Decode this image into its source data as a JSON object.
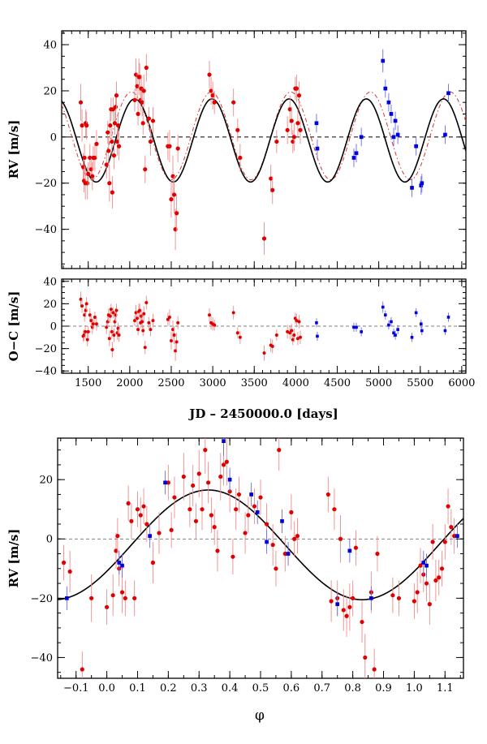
{
  "chart_data": [
    {
      "id": "rv-time",
      "type": "scatter",
      "xlabel": "",
      "ylabel": "RV [m/s]",
      "xlim": [
        1180,
        6050
      ],
      "ylim": [
        -57,
        46
      ],
      "yticks": [
        -40,
        -20,
        0,
        20,
        40
      ],
      "xticks": [
        1500,
        2000,
        2500,
        3000,
        3500,
        4000,
        4500,
        5000,
        5500,
        6000
      ],
      "show_xtick_labels": false,
      "model": {
        "type": "sine",
        "amplitude": 18.0,
        "offset": -1.5,
        "period": 930,
        "t0_peak": 2060
      },
      "model_alt": {
        "type": "sine",
        "amplitude": 19.0,
        "offset": 0.5,
        "period": 960,
        "t0_peak": 2020
      },
      "series": [
        {
          "name": "red instrument",
          "color": "#e00000",
          "marker": "circle",
          "x": [
            1410,
            1425,
            1440,
            1450,
            1455,
            1465,
            1470,
            1480,
            1490,
            1500,
            1520,
            1535,
            1550,
            1560,
            1580,
            1600,
            1720,
            1735,
            1745,
            1755,
            1765,
            1775,
            1785,
            1790,
            1800,
            1810,
            1820,
            1830,
            1840,
            1850,
            1860,
            1870,
            2060,
            2075,
            2090,
            2100,
            2110,
            2120,
            2130,
            2140,
            2150,
            2160,
            2170,
            2185,
            2200,
            2230,
            2250,
            2280,
            2460,
            2480,
            2500,
            2520,
            2535,
            2550,
            2565,
            2580,
            2960,
            2980,
            3000,
            3020,
            3250,
            3300,
            3330,
            3620,
            3700,
            3720,
            3770,
            3900,
            3930,
            3950,
            3965,
            3980,
            3995,
            4010,
            4025,
            4040,
            4055
          ],
          "y": [
            15,
            5,
            -13,
            -19,
            -9,
            -20,
            6,
            5,
            -20,
            -16,
            -9,
            -14,
            -17,
            -9,
            -9,
            -3,
            -12,
            2,
            -6,
            -20,
            5,
            12,
            -2,
            -24,
            12,
            -8,
            6,
            13,
            18,
            -2,
            5,
            -4,
            16,
            27,
            22,
            10,
            26,
            26,
            16,
            21,
            15,
            6,
            20,
            -14,
            30,
            8,
            -2,
            7,
            -4,
            -4,
            -27,
            -17,
            -25,
            -40,
            -33,
            -5,
            27,
            20,
            18,
            15,
            15,
            3,
            -9,
            -44,
            -18,
            -23,
            -2,
            3,
            12,
            7,
            -2,
            0,
            21,
            21,
            6,
            18,
            3
          ],
          "err": [
            8,
            7,
            6,
            5,
            6,
            7,
            6,
            6,
            7,
            5,
            6,
            5,
            6,
            5,
            6,
            6,
            6,
            5,
            6,
            8,
            6,
            5,
            6,
            7,
            5,
            6,
            5,
            6,
            6,
            6,
            5,
            6,
            5,
            7,
            6,
            5,
            8,
            6,
            5,
            6,
            6,
            5,
            7,
            6,
            6,
            5,
            6,
            6,
            6,
            7,
            8,
            9,
            8,
            9,
            8,
            6,
            6,
            6,
            6,
            5,
            6,
            5,
            6,
            7,
            6,
            6,
            5,
            6,
            6,
            6,
            5,
            6,
            5,
            6,
            6,
            6,
            6
          ]
        },
        {
          "name": "blue instrument",
          "color": "#0000dd",
          "marker": "square",
          "x": [
            4250,
            4260,
            4700,
            4730,
            4790,
            5050,
            5080,
            5120,
            5150,
            5180,
            5200,
            5230,
            5400,
            5450,
            5510,
            5520,
            5800,
            5840
          ],
          "y": [
            6,
            -5,
            -9,
            -7,
            0,
            33,
            21,
            15,
            10,
            0,
            7,
            1,
            -22,
            -4,
            -21,
            -20,
            1,
            19
          ],
          "err": [
            4,
            4,
            4,
            4,
            4,
            5,
            4,
            4,
            4,
            4,
            4,
            4,
            4,
            4,
            4,
            4,
            4,
            4
          ]
        }
      ]
    },
    {
      "id": "residuals",
      "type": "scatter",
      "xlabel": "JD – 2450000.0 [days]",
      "ylabel": "O−C [m/s]",
      "xlim": [
        1180,
        6050
      ],
      "ylim": [
        -42,
        42
      ],
      "yticks": [
        -40,
        -20,
        0,
        20,
        40
      ],
      "xticks": [
        1500,
        2000,
        2500,
        3000,
        3500,
        4000,
        4500,
        5000,
        5500,
        6000
      ],
      "show_xtick_labels": true,
      "series": [
        {
          "name": "red residuals",
          "color": "#e00000",
          "marker": "circle",
          "x": [
            1410,
            1425,
            1440,
            1450,
            1455,
            1465,
            1470,
            1480,
            1490,
            1500,
            1520,
            1535,
            1550,
            1560,
            1580,
            1600,
            1720,
            1735,
            1745,
            1755,
            1765,
            1775,
            1785,
            1790,
            1800,
            1810,
            1820,
            1830,
            1840,
            1850,
            1860,
            1870,
            2060,
            2075,
            2090,
            2100,
            2110,
            2120,
            2130,
            2140,
            2150,
            2160,
            2170,
            2185,
            2200,
            2230,
            2250,
            2280,
            2460,
            2480,
            2500,
            2520,
            2535,
            2550,
            2565,
            2580,
            2960,
            2980,
            3000,
            3020,
            3250,
            3300,
            3330,
            3620,
            3700,
            3720,
            3770,
            3900,
            3930,
            3950,
            3965,
            3980,
            3995,
            4010,
            4025,
            4040,
            4055
          ],
          "y": [
            24,
            18,
            -9,
            -8,
            10,
            -5,
            14,
            20,
            -12,
            -5,
            10,
            5,
            -1,
            2,
            8,
            2,
            -1,
            4,
            10,
            -11,
            9,
            15,
            -5,
            -21,
            12,
            -8,
            4,
            10,
            14,
            -6,
            -2,
            -8,
            5,
            12,
            7,
            -3,
            13,
            14,
            3,
            9,
            4,
            -4,
            11,
            -19,
            21,
            3,
            -3,
            5,
            6,
            8,
            -13,
            -3,
            -8,
            -22,
            -14,
            3,
            10,
            3,
            2,
            1,
            12,
            -6,
            -10,
            -24,
            -17,
            -18,
            -8,
            -5,
            -6,
            -4,
            -12,
            -8,
            7,
            5,
            -11,
            4,
            -10
          ],
          "err": [
            7,
            6,
            5,
            5,
            6,
            6,
            6,
            6,
            6,
            5,
            6,
            5,
            6,
            5,
            5,
            6,
            6,
            5,
            6,
            7,
            6,
            5,
            6,
            7,
            5,
            6,
            5,
            6,
            6,
            6,
            5,
            6,
            5,
            7,
            6,
            5,
            7,
            6,
            5,
            6,
            6,
            5,
            7,
            6,
            6,
            5,
            6,
            6,
            6,
            7,
            8,
            8,
            8,
            9,
            8,
            6,
            6,
            6,
            6,
            5,
            6,
            5,
            6,
            7,
            6,
            6,
            5,
            6,
            6,
            6,
            5,
            6,
            5,
            6,
            6,
            6,
            6
          ]
        },
        {
          "name": "blue residuals",
          "color": "#0000dd",
          "marker": "square",
          "x": [
            4250,
            4260,
            4700,
            4730,
            4790,
            5050,
            5080,
            5120,
            5150,
            5180,
            5200,
            5230,
            5400,
            5450,
            5510,
            5520,
            5800,
            5840
          ],
          "y": [
            3,
            -9,
            -1,
            -1,
            -5,
            17,
            10,
            1,
            4,
            -6,
            -8,
            -3,
            -10,
            12,
            2,
            -4,
            -4,
            8
          ],
          "err": [
            4,
            4,
            4,
            4,
            4,
            5,
            4,
            4,
            4,
            4,
            4,
            4,
            4,
            4,
            4,
            4,
            4,
            4
          ]
        }
      ]
    },
    {
      "id": "phase-folded",
      "type": "scatter",
      "xlabel": "φ",
      "ylabel": "RV [m/s]",
      "xlim": [
        -0.16,
        1.16
      ],
      "ylim": [
        -47,
        34
      ],
      "yticks": [
        -40,
        -20,
        0,
        20
      ],
      "xticks": [
        -0.1,
        0.0,
        0.1,
        0.2,
        0.3,
        0.4,
        0.5,
        0.6,
        0.7,
        0.8,
        0.9,
        1.0,
        1.1
      ],
      "xtick_labels": [
        "−0.1",
        "0.0",
        "0.1",
        "0.2",
        "0.3",
        "0.4",
        "0.5",
        "0.6",
        "0.7",
        "0.8",
        "0.9",
        "1.0",
        "1.1"
      ],
      "model": {
        "type": "sine",
        "amplitude": 18.5,
        "offset": -2.0,
        "period": 1.0,
        "t0_peak": 0.33
      },
      "series": [
        {
          "name": "red phased",
          "color": "#e00000",
          "marker": "circle",
          "x": [
            -0.14,
            -0.12,
            -0.08,
            -0.05,
            0.0,
            0.02,
            0.03,
            0.035,
            0.04,
            0.05,
            0.06,
            0.07,
            0.08,
            0.09,
            0.1,
            0.11,
            0.12,
            0.13,
            0.15,
            0.17,
            0.2,
            0.21,
            0.22,
            0.25,
            0.27,
            0.28,
            0.29,
            0.3,
            0.31,
            0.32,
            0.33,
            0.34,
            0.35,
            0.36,
            0.37,
            0.38,
            0.39,
            0.4,
            0.41,
            0.42,
            0.43,
            0.45,
            0.46,
            0.48,
            0.5,
            0.52,
            0.54,
            0.55,
            0.56,
            0.58,
            0.6,
            0.61,
            0.62,
            0.72,
            0.73,
            0.74,
            0.75,
            0.76,
            0.77,
            0.78,
            0.79,
            0.8,
            0.81,
            0.83,
            0.84,
            0.86,
            0.87,
            0.88,
            0.93,
            0.95,
            1.0,
            1.01,
            1.02,
            1.03,
            1.04,
            1.05,
            1.06,
            1.07,
            1.08,
            1.09,
            1.1,
            1.11,
            1.12,
            1.13
          ],
          "y": [
            -8,
            -11,
            -44,
            -20,
            -23,
            -19,
            -4,
            1,
            -10,
            -18,
            -20,
            12,
            6,
            -20,
            10,
            8,
            11,
            5,
            -8,
            2,
            19,
            3,
            14,
            21,
            10,
            18,
            6,
            22,
            10,
            30,
            19,
            8,
            4,
            -4,
            21,
            25,
            26,
            16,
            -6,
            10,
            15,
            2,
            8,
            11,
            14,
            5,
            -2,
            -10,
            30,
            -5,
            9,
            0,
            1,
            15,
            -21,
            10,
            -20,
            0,
            -24,
            -26,
            -23,
            -20,
            -3,
            -28,
            -40,
            -18,
            -44,
            -5,
            -19,
            -20,
            -21,
            -18,
            -9,
            -12,
            -15,
            -22,
            -1,
            -14,
            -13,
            -10,
            -1,
            11,
            4,
            1
          ],
          "err": [
            6,
            7,
            6,
            8,
            6,
            7,
            6,
            6,
            6,
            7,
            6,
            6,
            6,
            6,
            6,
            6,
            6,
            6,
            7,
            7,
            6,
            6,
            7,
            8,
            6,
            7,
            6,
            8,
            7,
            8,
            7,
            6,
            6,
            7,
            8,
            7,
            8,
            7,
            6,
            7,
            6,
            7,
            6,
            6,
            6,
            7,
            7,
            6,
            7,
            6,
            6,
            6,
            6,
            6,
            7,
            7,
            6,
            8,
            7,
            7,
            8,
            6,
            6,
            7,
            8,
            7,
            7,
            6,
            6,
            6,
            6,
            7,
            6,
            6,
            6,
            7,
            6,
            7,
            6,
            6,
            6,
            6,
            6,
            6
          ]
        },
        {
          "name": "blue phased",
          "color": "#0000dd",
          "marker": "square",
          "x": [
            -0.13,
            0.04,
            0.05,
            0.14,
            0.19,
            0.38,
            0.4,
            0.47,
            0.49,
            0.52,
            0.57,
            0.59,
            0.75,
            0.79,
            0.86,
            1.03,
            1.04,
            1.14
          ],
          "y": [
            -20,
            -8,
            -9,
            1,
            19,
            33,
            20,
            15,
            9,
            -1,
            6,
            -5,
            -22,
            -4,
            -20,
            -8,
            -9,
            1
          ],
          "err": [
            4,
            4,
            4,
            4,
            4,
            5,
            4,
            4,
            4,
            4,
            4,
            4,
            4,
            4,
            4,
            4,
            4,
            4
          ]
        }
      ]
    }
  ]
}
